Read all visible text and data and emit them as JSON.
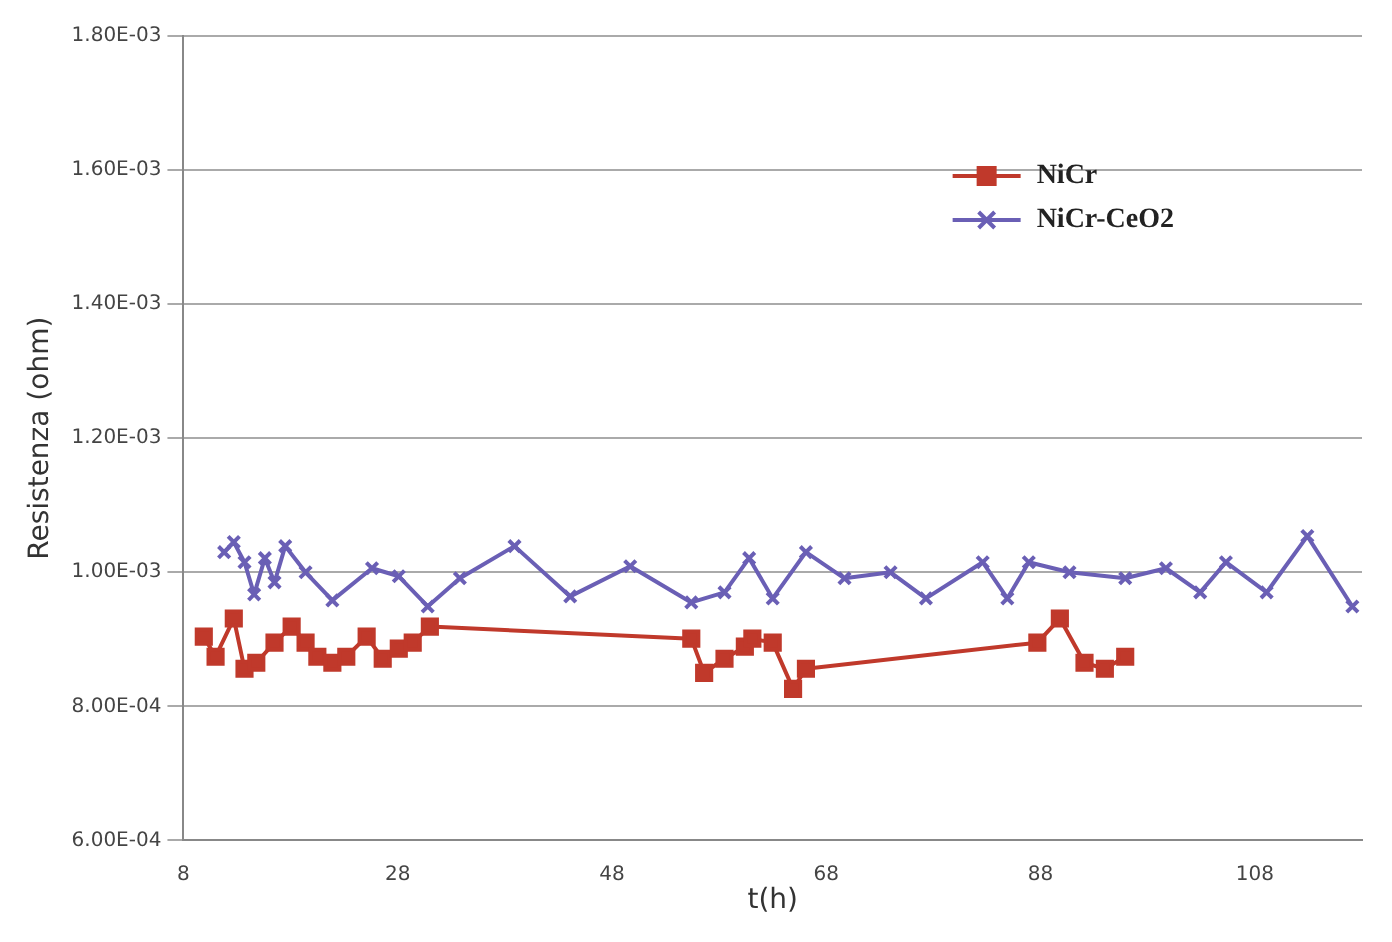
{
  "chart_data": {
    "type": "line",
    "xlabel": "t(h)",
    "ylabel": "Resistenza (ohm)",
    "xlim": [
      8,
      118
    ],
    "xticks": [
      8,
      28,
      48,
      68,
      88,
      108
    ],
    "ylim": [
      0.0006,
      0.0018
    ],
    "yticks": [
      {
        "value": 0.0006,
        "label": "6.00E-04"
      },
      {
        "value": 0.0008,
        "label": "8.00E-04"
      },
      {
        "value": 0.001,
        "label": "1.00E-03"
      },
      {
        "value": 0.0012,
        "label": "1.20E-03"
      },
      {
        "value": 0.0014,
        "label": "1.40E-03"
      },
      {
        "value": 0.0016,
        "label": "1.60E-03"
      },
      {
        "value": 0.0018,
        "label": "1.80E-03"
      }
    ],
    "grid": "y",
    "legend": "top right",
    "line_style": "solid",
    "series": [
      {
        "name": "NiCr",
        "color": "#c0392b",
        "marker": "square",
        "x": [
          9.9,
          11.0,
          12.7,
          13.7,
          14.8,
          16.5,
          18.1,
          19.4,
          20.5,
          21.9,
          23.2,
          25.1,
          26.6,
          28.1,
          29.4,
          31.0,
          55.4,
          56.6,
          58.5,
          60.4,
          61.1,
          63.0,
          64.9,
          66.1,
          87.7,
          89.8,
          92.1,
          94.0,
          95.9
        ],
        "values": [
          0.000904,
          0.000874,
          0.000931,
          0.000856,
          0.000865,
          0.000895,
          0.000919,
          0.000895,
          0.000874,
          0.000865,
          0.000874,
          0.000904,
          0.000871,
          0.000886,
          0.000895,
          0.000919,
          0.000901,
          0.00085,
          0.000871,
          0.000889,
          0.000901,
          0.000895,
          0.000826,
          0.000856,
          0.000895,
          0.000931,
          0.000865,
          0.000856,
          0.000874
        ]
      },
      {
        "name": "NiCr-CeO2",
        "color": "#6a5fb5",
        "marker": "cross",
        "x": [
          11.8,
          12.7,
          13.7,
          14.6,
          15.6,
          16.5,
          17.5,
          19.4,
          21.9,
          25.6,
          28.1,
          30.8,
          33.8,
          38.9,
          44.1,
          49.7,
          55.4,
          58.5,
          60.8,
          63.0,
          66.1,
          69.7,
          74.0,
          77.3,
          82.6,
          84.9,
          86.9,
          90.7,
          95.9,
          99.7,
          102.9,
          105.3,
          109.1,
          112.9,
          117.1
        ],
        "values": [
          0.00103,
          0.001045,
          0.001015,
          0.000967,
          0.001021,
          0.000985,
          0.001039,
          0.001,
          0.000958,
          0.001006,
          0.000994,
          0.000949,
          0.000991,
          0.001039,
          0.000964,
          0.001009,
          0.000955,
          0.00097,
          0.001021,
          0.000961,
          0.00103,
          0.000991,
          0.001,
          0.000961,
          0.001015,
          0.000961,
          0.001015,
          0.001,
          0.000991,
          0.001006,
          0.00097,
          0.001015,
          0.00097,
          0.001054,
          0.000949
        ]
      }
    ]
  }
}
